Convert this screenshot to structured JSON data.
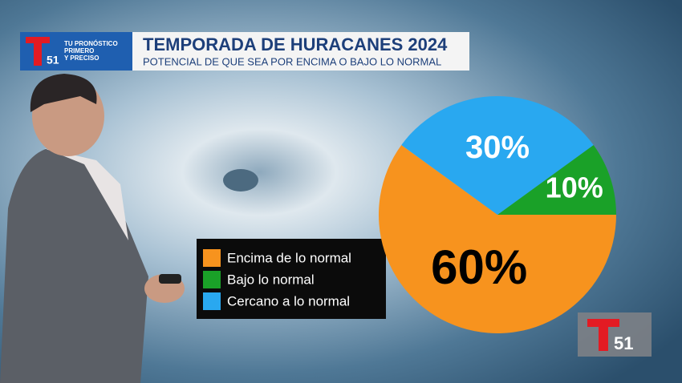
{
  "chart_data": {
    "type": "pie",
    "title": "TEMPORADA DE HURACANES 2024",
    "subtitle": "POTENCIAL DE QUE SEA POR ENCIMA O BAJO LO NORMAL",
    "categories": [
      "Encima de lo normal",
      "Bajo lo normal",
      "Cercano a lo normal"
    ],
    "values": [
      60,
      10,
      30
    ],
    "value_labels": [
      "60%",
      "10%",
      "30%"
    ],
    "colors": [
      "#f7931e",
      "#1aa128",
      "#29a8f0"
    ],
    "label_colors": [
      "#000000",
      "#ffffff",
      "#ffffff"
    ]
  },
  "branding": {
    "tagline": [
      "TU PRONÓSTICO",
      "PRIMERO",
      "Y PRECISO"
    ],
    "channel": "51"
  }
}
